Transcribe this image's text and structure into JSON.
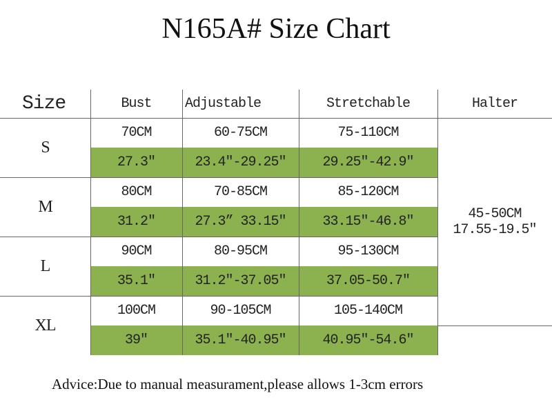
{
  "title": "N165A# Size Chart",
  "table": {
    "header": [
      "Size",
      "Bust",
      "Adjustable",
      "Stretchable",
      "Halter"
    ],
    "rows": [
      {
        "size": "S",
        "cm": [
          "70CM",
          "60-75CM",
          "75-110CM"
        ],
        "inch": [
          "27.3″",
          "23.4″-29.25″",
          "29.25″-42.9″"
        ]
      },
      {
        "size": "M",
        "cm": [
          "80CM",
          "70-85CM",
          "85-120CM"
        ],
        "inch": [
          "31.2″",
          "27.3” 33.15″",
          "33.15″-46.8″"
        ]
      },
      {
        "size": "L",
        "cm": [
          "90CM",
          "80-95CM",
          "95-130CM"
        ],
        "inch": [
          "35.1″",
          "31.2″-37.05″",
          "37.05-50.7″"
        ]
      },
      {
        "size": "XL",
        "cm": [
          "100CM",
          "90-105CM",
          "105-140CM"
        ],
        "inch": [
          "39″",
          "35.1″-40.95″",
          "40.95″-54.6″"
        ]
      }
    ],
    "halter": [
      "45-50CM",
      "17.55-19.5″"
    ]
  },
  "advice": "Advice:Due to manual measurament,please allows 1-3cm errors"
}
